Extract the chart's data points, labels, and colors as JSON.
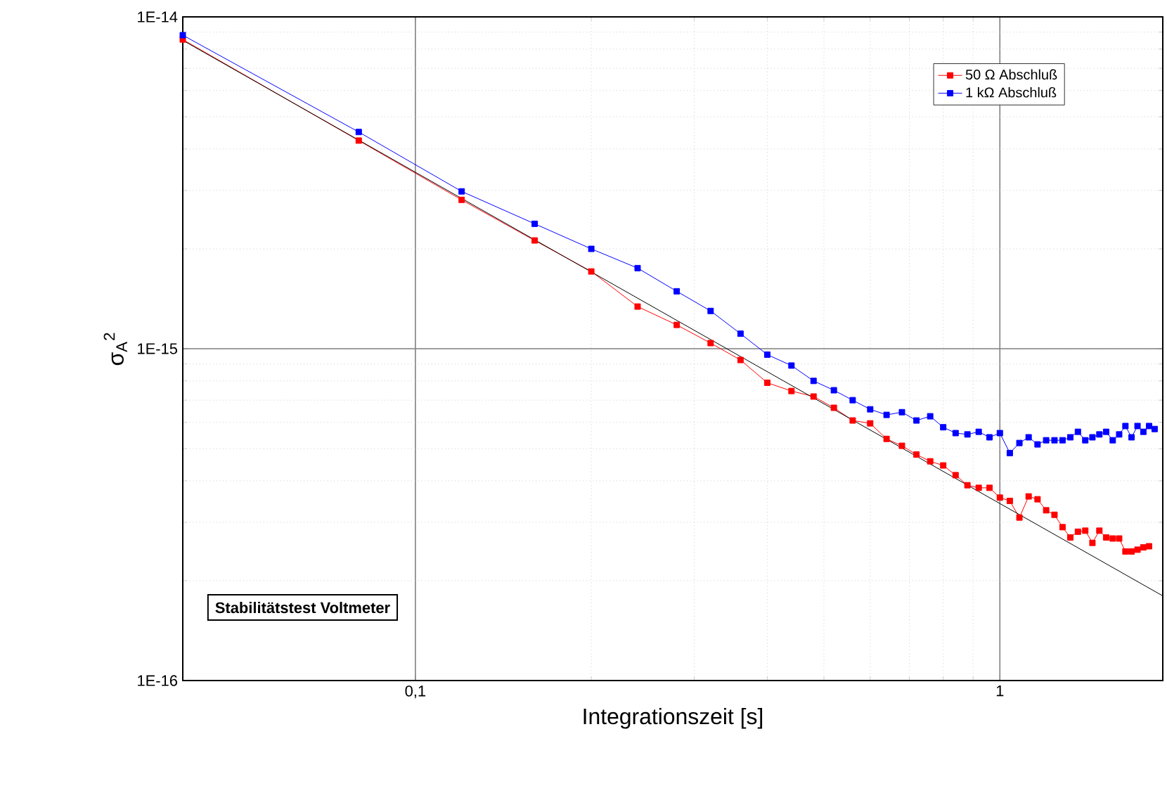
{
  "chart_data": {
    "type": "line",
    "xlabel": "Integrationszeit [s]",
    "ylabel": "σ$_{A}$$^{2}$",
    "log": "xy",
    "grid": true,
    "legend": "top right",
    "marker": "square",
    "line_style": "solid",
    "xlim": [
      0.04,
      1.9
    ],
    "ylim": [
      1e-16,
      1e-14
    ],
    "xticks": [
      {
        "value": 0.1,
        "label": "0,1"
      },
      {
        "value": 1,
        "label": "1"
      }
    ],
    "yticks": [
      {
        "value": 1e-16,
        "label": "1E-16"
      },
      {
        "value": 1e-15,
        "label": "1E-15"
      },
      {
        "value": 1e-14,
        "label": "1E-14"
      }
    ],
    "annotations": [
      "Stabilitätstest Voltmeter"
    ],
    "series": [
      {
        "name": "50 Ω Abschluß",
        "color": "#ff0000",
        "x": [
          0.04,
          0.08,
          0.12,
          0.16,
          0.2,
          0.24,
          0.28,
          0.32,
          0.36,
          0.4,
          0.44,
          0.48,
          0.52,
          0.56,
          0.6,
          0.64,
          0.68,
          0.72,
          0.76,
          0.8,
          0.84,
          0.88,
          0.92,
          0.96,
          1.0,
          1.04,
          1.08,
          1.12,
          1.16,
          1.2,
          1.24,
          1.28,
          1.32,
          1.36,
          1.4,
          1.44,
          1.48,
          1.52,
          1.56,
          1.6,
          1.64,
          1.68,
          1.72,
          1.76,
          1.8
        ],
        "values": [
          8.55e-15,
          4.24e-15,
          2.81e-15,
          2.12e-15,
          1.71e-15,
          1.34e-15,
          1.18e-15,
          1.04e-15,
          9.25e-16,
          7.9e-16,
          7.46e-16,
          7.18e-16,
          6.64e-16,
          6.08e-16,
          5.96e-16,
          5.35e-16,
          5.1e-16,
          4.8e-16,
          4.58e-16,
          4.45e-16,
          4.16e-16,
          3.88e-16,
          3.81e-16,
          3.81e-16,
          3.56e-16,
          3.48e-16,
          3.1e-16,
          3.59e-16,
          3.52e-16,
          3.26e-16,
          3.16e-16,
          2.9e-16,
          2.7e-16,
          2.81e-16,
          2.83e-16,
          2.6e-16,
          2.83e-16,
          2.7e-16,
          2.68e-16,
          2.68e-16,
          2.45e-16,
          2.45e-16,
          2.48e-16,
          2.52e-16,
          2.54e-16
        ]
      },
      {
        "name": "1 kΩ Abschluß",
        "color": "#0000ff",
        "x": [
          0.04,
          0.08,
          0.12,
          0.16,
          0.2,
          0.24,
          0.28,
          0.32,
          0.36,
          0.4,
          0.44,
          0.48,
          0.52,
          0.56,
          0.6,
          0.64,
          0.68,
          0.72,
          0.76,
          0.8,
          0.84,
          0.88,
          0.92,
          0.96,
          1.0,
          1.04,
          1.08,
          1.12,
          1.16,
          1.2,
          1.24,
          1.28,
          1.32,
          1.36,
          1.4,
          1.44,
          1.48,
          1.52,
          1.56,
          1.6,
          1.64,
          1.68,
          1.72,
          1.76,
          1.8,
          1.84
        ],
        "values": [
          8.81e-15,
          4.5e-15,
          2.98e-15,
          2.38e-15,
          2e-15,
          1.75e-15,
          1.49e-15,
          1.3e-15,
          1.11e-15,
          9.6e-16,
          8.9e-16,
          8e-16,
          7.5e-16,
          7e-16,
          6.57e-16,
          6.32e-16,
          6.44e-16,
          6.08e-16,
          6.26e-16,
          5.8e-16,
          5.57e-16,
          5.52e-16,
          5.62e-16,
          5.41e-16,
          5.57e-16,
          4.85e-16,
          5.2e-16,
          5.41e-16,
          5.15e-16,
          5.3e-16,
          5.3e-16,
          5.3e-16,
          5.41e-16,
          5.62e-16,
          5.3e-16,
          5.41e-16,
          5.52e-16,
          5.62e-16,
          5.3e-16,
          5.52e-16,
          5.85e-16,
          5.41e-16,
          5.85e-16,
          5.62e-16,
          5.85e-16,
          5.73e-16
        ]
      },
      {
        "marker": "none",
        "color": "#000000",
        "x": [
          0.04,
          1.9
        ],
        "values": [
          8.5e-15,
          1.8e-16
        ]
      }
    ]
  }
}
